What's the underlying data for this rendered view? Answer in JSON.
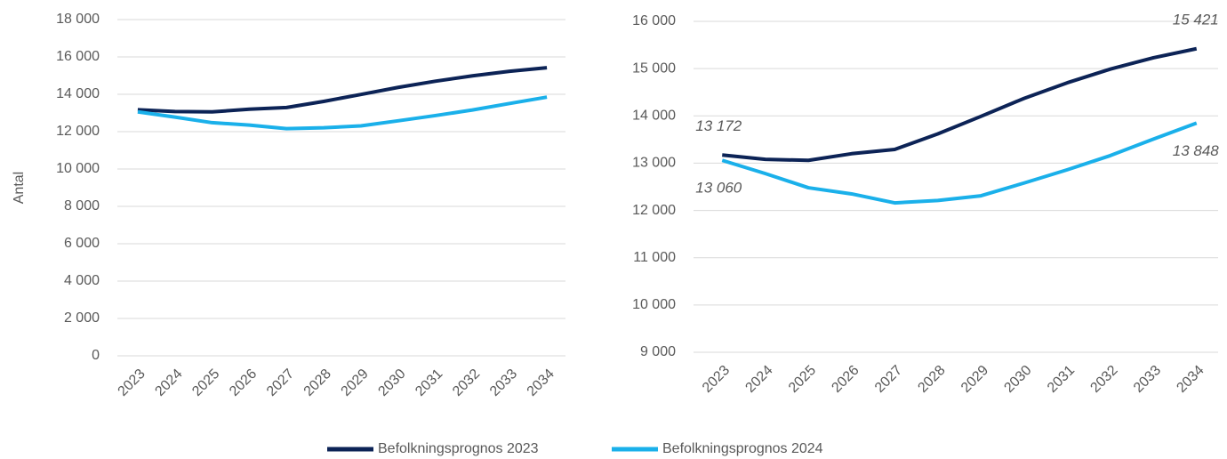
{
  "chart_data": [
    {
      "type": "line",
      "y_label": "Antal",
      "categories": [
        "2023",
        "2024",
        "2025",
        "2026",
        "2027",
        "2028",
        "2029",
        "2030",
        "2031",
        "2032",
        "2033",
        "2034"
      ],
      "series": [
        {
          "name": "Befolkningsprognos 2023",
          "color": "#0c2356",
          "values": [
            13172,
            13080,
            13060,
            13200,
            13290,
            13620,
            13990,
            14370,
            14700,
            14990,
            15230,
            15421
          ]
        },
        {
          "name": "Befolkningsprognos 2024",
          "color": "#1ab0ea",
          "values": [
            13060,
            12780,
            12480,
            12350,
            12160,
            12210,
            12310,
            12580,
            12860,
            13160,
            13510,
            13848
          ]
        }
      ],
      "ylim": [
        0,
        18000
      ],
      "yticks": [
        0,
        {
          "value": 2000,
          "label": "2 000"
        },
        {
          "value": 4000,
          "label": "4 000"
        },
        {
          "value": 6000,
          "label": "6 000"
        },
        {
          "value": 8000,
          "label": "8 000"
        },
        {
          "value": 10000,
          "label": "10 000"
        },
        {
          "value": 12000,
          "label": "12 000"
        },
        {
          "value": 14000,
          "label": "14 000"
        },
        {
          "value": 16000,
          "label": "16 000"
        },
        {
          "value": 18000,
          "label": "18 000"
        }
      ],
      "grid": true
    },
    {
      "type": "line",
      "categories": [
        "2023",
        "2024",
        "2025",
        "2026",
        "2027",
        "2028",
        "2029",
        "2030",
        "2031",
        "2032",
        "2033",
        "2034"
      ],
      "series": [
        {
          "name": "Befolkningsprognos 2023",
          "color": "#0c2356",
          "values": [
            13172,
            13080,
            13060,
            13200,
            13290,
            13620,
            13990,
            14370,
            14700,
            14990,
            15230,
            15421
          ],
          "value_labels": [
            "13 172",
            null,
            null,
            null,
            null,
            null,
            null,
            null,
            null,
            null,
            null,
            "15 421"
          ]
        },
        {
          "name": "Befolkningsprognos 2024",
          "color": "#1ab0ea",
          "values": [
            13060,
            12780,
            12480,
            12350,
            12160,
            12210,
            12310,
            12580,
            12860,
            13160,
            13510,
            13848
          ],
          "value_labels": [
            "13 060",
            null,
            null,
            null,
            null,
            null,
            null,
            null,
            null,
            null,
            null,
            "13 848"
          ]
        }
      ],
      "ylim": [
        9000,
        16000
      ],
      "yticks": [
        {
          "value": 9000,
          "label": "9 000"
        },
        {
          "value": 10000,
          "label": "10 000"
        },
        {
          "value": 11000,
          "label": "11 000"
        },
        {
          "value": 12000,
          "label": "12 000"
        },
        {
          "value": 13000,
          "label": "13 000"
        },
        {
          "value": 14000,
          "label": "14 000"
        },
        {
          "value": 15000,
          "label": "15 000"
        },
        {
          "value": 16000,
          "label": "16 000"
        }
      ],
      "grid": true
    }
  ]
}
